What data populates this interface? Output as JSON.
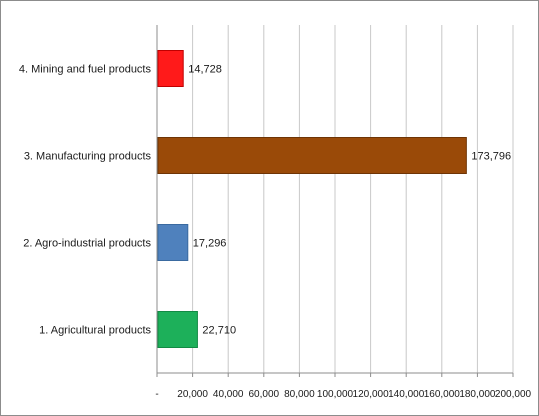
{
  "chart_data": {
    "type": "bar",
    "orientation": "horizontal",
    "categories": [
      "4. Mining and fuel products",
      "3. Manufacturing products",
      "2. Agro-industrial products",
      "1. Agricultural products"
    ],
    "values": [
      14728,
      173796,
      17296,
      22710
    ],
    "value_labels": [
      "14,728",
      "173,796",
      "17,296",
      "22,710"
    ],
    "colors": [
      "#ff1a1a",
      "#9a4a08",
      "#4f81bd",
      "#1db05a"
    ],
    "xlim": [
      0,
      200000
    ],
    "x_tick_values": [
      0,
      20000,
      40000,
      60000,
      80000,
      100000,
      120000,
      140000,
      160000,
      180000,
      200000
    ],
    "x_tick_labels": [
      "-",
      "20,000",
      "40,000",
      "60,000",
      "80,000",
      "100,000",
      "120,000",
      "140,000",
      "160,000",
      "180,000",
      "200,000"
    ],
    "grid": "vertical",
    "legend": "none",
    "title": "",
    "xlabel": "",
    "ylabel": ""
  }
}
